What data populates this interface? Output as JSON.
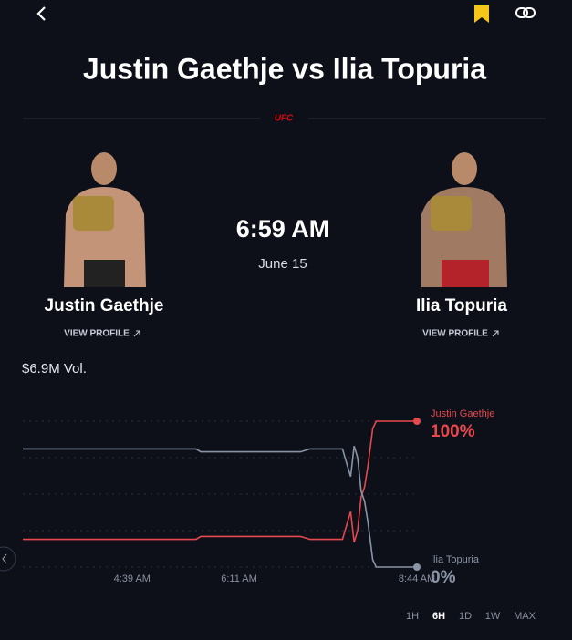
{
  "header": {
    "title": "Justin Gaethje vs Ilia Topuria",
    "badge": "UFC"
  },
  "fighters": [
    {
      "name": "Justin Gaethje",
      "link": "VIEW PROFILE"
    },
    {
      "name": "Ilia Topuria",
      "link": "VIEW PROFILE"
    }
  ],
  "event": {
    "time": "6:59 AM",
    "date": "June 15"
  },
  "volume": "$6.9M Vol.",
  "chart_data": {
    "type": "line",
    "x": [
      185,
      334,
      338,
      424,
      432,
      460,
      464,
      467,
      470,
      473,
      476,
      479,
      482,
      486,
      489,
      524
    ],
    "series": [
      {
        "name": "Justin Gaethje",
        "color": "#e5484d",
        "values": [
          19,
          19,
          21,
          21,
          19,
          19,
          30,
          38,
          17,
          25,
          48,
          55,
          70,
          95,
          100,
          100
        ],
        "value_labels": [
          null,
          null,
          null,
          null,
          null,
          null,
          null,
          null,
          null,
          null,
          null,
          null,
          null,
          null,
          null,
          "100%"
        ]
      },
      {
        "name": "Ilia Topuria",
        "color": "#8a94a6",
        "values": [
          81,
          81,
          79,
          79,
          81,
          81,
          70,
          62,
          83,
          75,
          52,
          45,
          30,
          5,
          0,
          0
        ],
        "value_labels": [
          null,
          null,
          null,
          null,
          null,
          null,
          null,
          null,
          null,
          null,
          null,
          null,
          null,
          null,
          null,
          "0%"
        ]
      }
    ],
    "xlim": [
      185,
      524
    ],
    "xticks": [
      {
        "value": 279,
        "label": "4:39 AM"
      },
      {
        "value": 371,
        "label": "6:11 AM"
      },
      {
        "value": 524,
        "label": "8:44 AM"
      }
    ],
    "ylim": [
      0,
      100
    ],
    "gridlines": [
      0,
      25,
      50,
      75,
      100
    ]
  },
  "range_buttons": [
    "1H",
    "6H",
    "1D",
    "1W",
    "MAX"
  ],
  "active_range_index": 1
}
